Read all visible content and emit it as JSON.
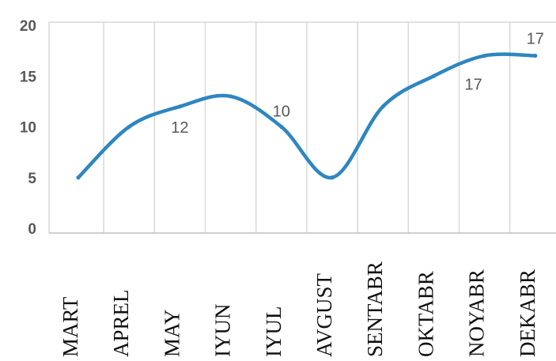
{
  "chart_data": {
    "type": "line",
    "title": "",
    "xlabel": "",
    "ylabel": "",
    "categories": [
      "MART",
      "APREL",
      "MAY",
      "IYUN",
      "IYUL",
      "AVGUST",
      "SENTABR",
      "OKTABR",
      "NOYABR",
      "DEKABR"
    ],
    "series": [
      {
        "values": [
          5,
          10,
          12,
          13,
          10,
          5,
          12,
          15,
          17,
          17
        ],
        "color": "#2e86c1"
      }
    ],
    "ylim": [
      0,
      20
    ],
    "yticks": [
      "0",
      "5",
      "10",
      "15",
      "20"
    ],
    "grid": "vertical",
    "smooth": true,
    "data_labels": [
      {
        "index": 2,
        "text": "12"
      },
      {
        "index": 4,
        "text": "10"
      },
      {
        "index": 8,
        "text": "17"
      },
      {
        "index": 9,
        "text": "17"
      }
    ]
  }
}
